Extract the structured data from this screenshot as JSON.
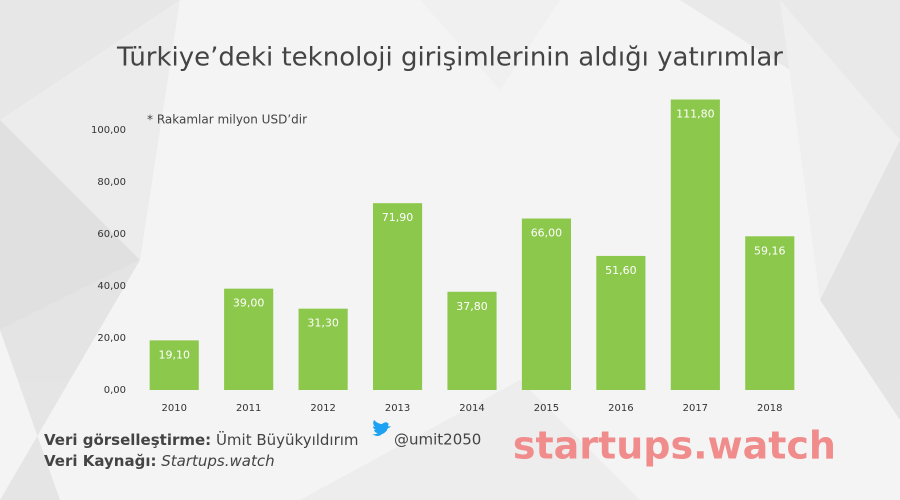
{
  "chart_data": {
    "type": "bar",
    "title": "Türkiye’deki teknoloji girişimlerinin aldığı yatırımlar",
    "annotation": "* Rakamlar milyon USD’dir",
    "categories": [
      "2010",
      "2011",
      "2012",
      "2013",
      "2014",
      "2015",
      "2016",
      "2017",
      "2018"
    ],
    "values": [
      19.1,
      39,
      31.3,
      71.9,
      37.8,
      66,
      51.6,
      111.8,
      59.16
    ],
    "value_labels": [
      "19,10",
      "39,00",
      "31,30",
      "71,90",
      "37,80",
      "66,00",
      "51,60",
      "111,80",
      "59,16"
    ],
    "color": "#8cc84b",
    "ylim": [
      0,
      112
    ],
    "yticks": [
      {
        "value": 0,
        "label": "0,00"
      },
      {
        "value": 20,
        "label": "20,00"
      },
      {
        "value": 40,
        "label": "40,00"
      },
      {
        "value": 60,
        "label": "60,00"
      },
      {
        "value": 80,
        "label": "80,00"
      },
      {
        "value": 100,
        "label": "100,00"
      }
    ],
    "grid": false
  },
  "footer": {
    "credit_label": "Veri görselleştirme:",
    "credit_name": "Ümit Büyükyıldırım",
    "credit_handle": "@umit2050",
    "source_label": "Veri Kaynağı:",
    "source_name": "Startups.watch",
    "logo": "startups.watch"
  }
}
